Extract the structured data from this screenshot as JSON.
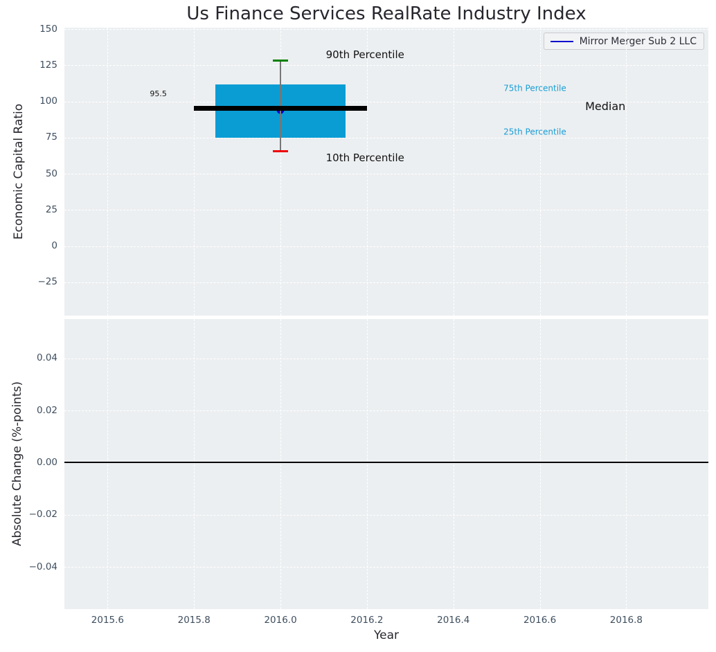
{
  "title": "Us Finance Services RealRate Industry Index",
  "legend": {
    "label": "Mirror Merger Sub 2 LLC"
  },
  "colors": {
    "plot_bg": "#eceff1",
    "grid": "#ffffff",
    "box_fill": "#0a9dd4",
    "median_line": "#000000",
    "whisker": "#777777",
    "p90_cap": "#008000",
    "p10_cap": "#ee0000",
    "company_marker": "#0000cd",
    "legend_line": "#0000cd",
    "percentile_label": "#189dd6",
    "tick_label": "#3e4e5e",
    "zero_line": "#000000"
  },
  "x_axis": {
    "label": "Year",
    "tick_values": [
      2015.6,
      2015.8,
      2016.0,
      2016.2,
      2016.4,
      2016.6,
      2016.8
    ],
    "tick_labels": [
      "2015.6",
      "2015.8",
      "2016.0",
      "2016.2",
      "2016.4",
      "2016.6",
      "2016.8"
    ],
    "xlim": [
      2015.5,
      2016.99
    ]
  },
  "chart_data": [
    {
      "type": "box",
      "title": "Us Finance Services RealRate Industry Index",
      "ylabel": "Economic Capital Ratio",
      "ylim": [
        -48,
        151
      ],
      "ytick_values": [
        150,
        125,
        100,
        75,
        50,
        25,
        0,
        -25
      ],
      "ytick_labels": [
        "150",
        "125",
        "100",
        "75",
        "50",
        "25",
        "0",
        "−25"
      ],
      "grid": true,
      "legend_position": "upper right",
      "boxplot": {
        "x": 2016.0,
        "p90": 128.5,
        "p75": 112,
        "median": 95.5,
        "p25": 75,
        "p10": 65.5,
        "box_halfwidth_years": 0.15,
        "median_halfwidth_years": 0.2,
        "cap_halfwidth_years": 0.018
      },
      "series": [
        {
          "name": "Mirror Merger Sub 2 LLC",
          "x": 2016.0,
          "value": 94
        }
      ],
      "annotations": [
        {
          "text": "90th Percentile",
          "x": 2016.105,
          "y": 132.5,
          "align": "left",
          "color": "#111111",
          "size": 15
        },
        {
          "text": "10th Percentile",
          "x": 2016.105,
          "y": 61,
          "align": "left",
          "color": "#111111",
          "size": 15
        },
        {
          "text": "95.5",
          "x": 2015.737,
          "y": 105,
          "align": "right",
          "color": "#111111",
          "size": 11
        },
        {
          "text": "75th Percentile",
          "x": 2016.516,
          "y": 109,
          "align": "left",
          "color": "#189dd6",
          "size": 12
        },
        {
          "text": "Median",
          "x": 2016.705,
          "y": 96.5,
          "align": "left",
          "color": "#111111",
          "size": 16
        },
        {
          "text": "25th Percentile",
          "x": 2016.516,
          "y": 79,
          "align": "left",
          "color": "#189dd6",
          "size": 12
        }
      ]
    },
    {
      "type": "line",
      "ylabel": "Absolute Change (%-points)",
      "xlabel": "Year",
      "ylim": [
        -0.0562,
        0.0551
      ],
      "ytick_values": [
        0.04,
        0.02,
        0,
        -0.02,
        -0.04
      ],
      "ytick_labels": [
        "0.04",
        "0.02",
        "0.00",
        "−0.02",
        "−0.04"
      ],
      "grid": true,
      "zero_line": 0,
      "series": []
    }
  ]
}
